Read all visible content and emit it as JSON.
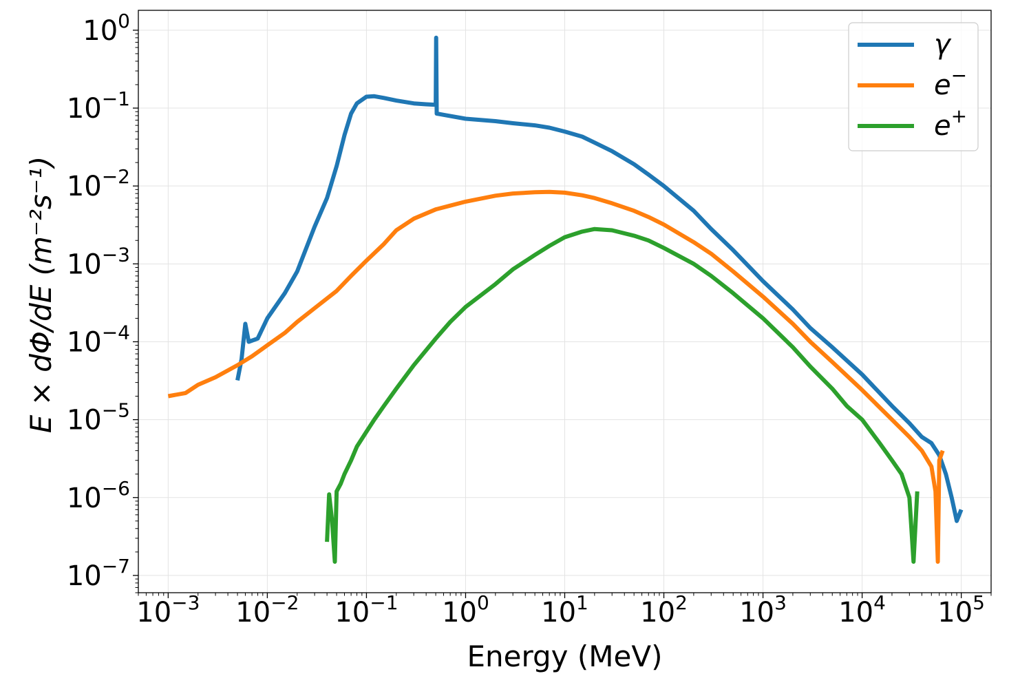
{
  "chart_data": {
    "type": "line",
    "title": "",
    "xlabel": "Energy (MeV)",
    "ylabel": "E × dΦ/dE   (m⁻²s⁻¹)",
    "xscale": "log",
    "yscale": "log",
    "xlim": [
      0.0005,
      200000
    ],
    "ylim": [
      6e-08,
      1.8
    ],
    "grid": true,
    "legend_position": "top-right",
    "x_ticks": [
      {
        "base": "10",
        "exp": "−3",
        "value": 0.001
      },
      {
        "base": "10",
        "exp": "−2",
        "value": 0.01
      },
      {
        "base": "10",
        "exp": "−1",
        "value": 0.1
      },
      {
        "base": "10",
        "exp": "0",
        "value": 1
      },
      {
        "base": "10",
        "exp": "1",
        "value": 10
      },
      {
        "base": "10",
        "exp": "2",
        "value": 100
      },
      {
        "base": "10",
        "exp": "3",
        "value": 1000
      },
      {
        "base": "10",
        "exp": "4",
        "value": 10000
      },
      {
        "base": "10",
        "exp": "5",
        "value": 100000
      }
    ],
    "y_ticks": [
      {
        "base": "10",
        "exp": "0",
        "value": 1
      },
      {
        "base": "10",
        "exp": "−1",
        "value": 0.1
      },
      {
        "base": "10",
        "exp": "−2",
        "value": 0.01
      },
      {
        "base": "10",
        "exp": "−3",
        "value": 0.001
      },
      {
        "base": "10",
        "exp": "−4",
        "value": 0.0001
      },
      {
        "base": "10",
        "exp": "−5",
        "value": 1e-05
      },
      {
        "base": "10",
        "exp": "−6",
        "value": 1e-06
      },
      {
        "base": "10",
        "exp": "−7",
        "value": 1e-07
      }
    ],
    "series": [
      {
        "name": "γ",
        "label_base": "γ",
        "label_exp": "",
        "color": "#1f77b4",
        "points": [
          [
            0.005,
            3.2e-05
          ],
          [
            0.0055,
            6e-05
          ],
          [
            0.006,
            0.00017
          ],
          [
            0.0065,
            0.0001
          ],
          [
            0.008,
            0.00011
          ],
          [
            0.01,
            0.0002
          ],
          [
            0.015,
            0.00042
          ],
          [
            0.02,
            0.0008
          ],
          [
            0.03,
            0.003
          ],
          [
            0.04,
            0.007
          ],
          [
            0.05,
            0.018
          ],
          [
            0.06,
            0.045
          ],
          [
            0.07,
            0.085
          ],
          [
            0.08,
            0.115
          ],
          [
            0.1,
            0.14
          ],
          [
            0.12,
            0.142
          ],
          [
            0.15,
            0.135
          ],
          [
            0.2,
            0.125
          ],
          [
            0.3,
            0.115
          ],
          [
            0.4,
            0.112
          ],
          [
            0.5,
            0.11
          ],
          [
            0.505,
            0.8
          ],
          [
            0.511,
            0.085
          ],
          [
            0.6,
            0.082
          ],
          [
            1,
            0.073
          ],
          [
            2,
            0.068
          ],
          [
            3,
            0.064
          ],
          [
            5,
            0.06
          ],
          [
            7,
            0.056
          ],
          [
            10,
            0.05
          ],
          [
            15,
            0.043
          ],
          [
            20,
            0.036
          ],
          [
            30,
            0.028
          ],
          [
            50,
            0.019
          ],
          [
            70,
            0.014
          ],
          [
            100,
            0.01
          ],
          [
            200,
            0.0048
          ],
          [
            300,
            0.0028
          ],
          [
            500,
            0.0015
          ],
          [
            1000,
            0.0006
          ],
          [
            2000,
            0.00026
          ],
          [
            3000,
            0.00015
          ],
          [
            5000,
            8.5e-05
          ],
          [
            10000,
            3.8e-05
          ],
          [
            20000,
            1.5e-05
          ],
          [
            30000,
            9e-06
          ],
          [
            40000,
            6e-06
          ],
          [
            50000,
            5e-06
          ],
          [
            60000,
            3.5e-06
          ],
          [
            70000,
            2e-06
          ],
          [
            80000,
            1e-06
          ],
          [
            90000,
            5e-07
          ],
          [
            100000,
            7e-07
          ]
        ]
      },
      {
        "name": "e⁻",
        "label_base": "e",
        "label_exp": "−",
        "color": "#ff7f0e",
        "points": [
          [
            0.001,
            2e-05
          ],
          [
            0.0015,
            2.2e-05
          ],
          [
            0.002,
            2.8e-05
          ],
          [
            0.003,
            3.5e-05
          ],
          [
            0.005,
            5e-05
          ],
          [
            0.007,
            6.5e-05
          ],
          [
            0.01,
            9e-05
          ],
          [
            0.015,
            0.00013
          ],
          [
            0.02,
            0.00018
          ],
          [
            0.03,
            0.00027
          ],
          [
            0.05,
            0.00045
          ],
          [
            0.07,
            0.0007
          ],
          [
            0.1,
            0.0011
          ],
          [
            0.15,
            0.0018
          ],
          [
            0.2,
            0.0027
          ],
          [
            0.3,
            0.0038
          ],
          [
            0.5,
            0.005
          ],
          [
            0.7,
            0.0056
          ],
          [
            1,
            0.0063
          ],
          [
            2,
            0.0075
          ],
          [
            3,
            0.008
          ],
          [
            5,
            0.0083
          ],
          [
            7,
            0.0084
          ],
          [
            10,
            0.0082
          ],
          [
            15,
            0.0076
          ],
          [
            20,
            0.007
          ],
          [
            30,
            0.006
          ],
          [
            50,
            0.0048
          ],
          [
            70,
            0.004
          ],
          [
            100,
            0.0032
          ],
          [
            200,
            0.0019
          ],
          [
            300,
            0.00135
          ],
          [
            500,
            0.0008
          ],
          [
            1000,
            0.00038
          ],
          [
            2000,
            0.00017
          ],
          [
            3000,
            0.0001
          ],
          [
            5000,
            5.5e-05
          ],
          [
            10000,
            2.4e-05
          ],
          [
            20000,
            1e-05
          ],
          [
            30000,
            6e-06
          ],
          [
            40000,
            4e-06
          ],
          [
            50000,
            2.5e-06
          ],
          [
            55000,
            1.2e-06
          ],
          [
            58000,
            1.5e-07
          ],
          [
            60000,
            3e-06
          ],
          [
            65000,
            4e-06
          ]
        ]
      },
      {
        "name": "e⁺",
        "label_base": "e",
        "label_exp": "+",
        "color": "#2ca02c",
        "points": [
          [
            0.04,
            2.7e-07
          ],
          [
            0.042,
            1.1e-06
          ],
          [
            0.045,
            5e-07
          ],
          [
            0.048,
            1.5e-07
          ],
          [
            0.05,
            1.2e-06
          ],
          [
            0.055,
            1.5e-06
          ],
          [
            0.06,
            2e-06
          ],
          [
            0.07,
            3e-06
          ],
          [
            0.08,
            4.5e-06
          ],
          [
            0.1,
            7e-06
          ],
          [
            0.12,
            1e-05
          ],
          [
            0.15,
            1.5e-05
          ],
          [
            0.2,
            2.5e-05
          ],
          [
            0.3,
            5e-05
          ],
          [
            0.5,
            0.00011
          ],
          [
            0.7,
            0.00018
          ],
          [
            1,
            0.00028
          ],
          [
            2,
            0.00055
          ],
          [
            3,
            0.00085
          ],
          [
            5,
            0.0013
          ],
          [
            7,
            0.0017
          ],
          [
            10,
            0.0022
          ],
          [
            15,
            0.0026
          ],
          [
            20,
            0.0028
          ],
          [
            30,
            0.0027
          ],
          [
            50,
            0.0023
          ],
          [
            70,
            0.002
          ],
          [
            100,
            0.0016
          ],
          [
            200,
            0.001
          ],
          [
            300,
            0.0007
          ],
          [
            500,
            0.00042
          ],
          [
            1000,
            0.0002
          ],
          [
            2000,
            8.5e-05
          ],
          [
            3000,
            4.8e-05
          ],
          [
            5000,
            2.5e-05
          ],
          [
            7000,
            1.5e-05
          ],
          [
            10000,
            1e-05
          ],
          [
            15000,
            5e-06
          ],
          [
            20000,
            3e-06
          ],
          [
            25000,
            2e-06
          ],
          [
            30000,
            1e-06
          ],
          [
            33000,
            1.5e-07
          ],
          [
            36000,
            1.2e-06
          ]
        ]
      }
    ]
  }
}
